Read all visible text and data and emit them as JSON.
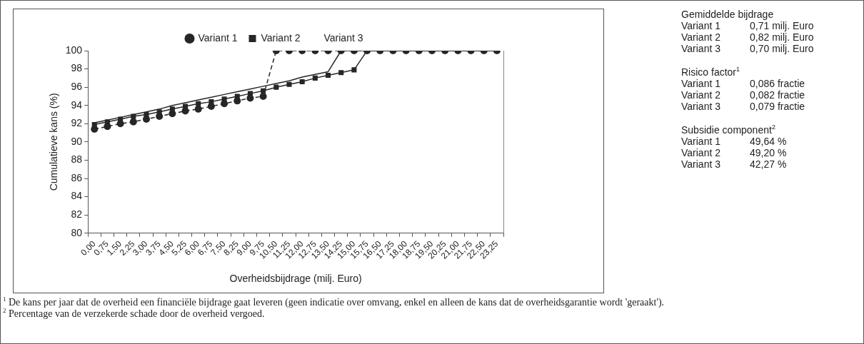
{
  "chart_data": {
    "type": "line",
    "xlabel": "Overheidsbijdrage (milj. Euro)",
    "ylabel": "Cumulatieve kans (%)",
    "categories": [
      "0,00",
      "0,75",
      "1,50",
      "2,25",
      "3,00",
      "3,75",
      "4,50",
      "5,25",
      "6,00",
      "6,75",
      "7,50",
      "8,25",
      "9,00",
      "9,75",
      "10,50",
      "11,25",
      "12,00",
      "12,75",
      "13,50",
      "14,25",
      "15,00",
      "15,75",
      "16,50",
      "17,25",
      "18,00",
      "18,75",
      "19,50",
      "20,25",
      "21,00",
      "21,75",
      "22,50",
      "23,25"
    ],
    "series": [
      {
        "name": "Variant 1",
        "color": "#262626",
        "marker": "circle",
        "line_style": "dashed",
        "values": [
          91.4,
          91.7,
          92.0,
          92.2,
          92.5,
          92.8,
          93.1,
          93.4,
          93.6,
          93.9,
          94.2,
          94.5,
          94.8,
          95.0,
          100,
          100,
          100,
          100,
          100,
          100,
          100,
          100,
          100,
          100,
          100,
          100,
          100,
          100,
          100,
          100,
          100,
          100
        ]
      },
      {
        "name": "Variant 2",
        "color": "#262626",
        "marker": "square",
        "line_style": "solid",
        "values": [
          91.9,
          92.2,
          92.5,
          92.8,
          93.0,
          93.3,
          93.6,
          93.9,
          94.2,
          94.4,
          94.7,
          95.0,
          95.3,
          95.6,
          96.0,
          96.3,
          96.6,
          97.0,
          97.3,
          97.6,
          97.9,
          100,
          100,
          100,
          100,
          100,
          100,
          100,
          100,
          100,
          100,
          100
        ]
      },
      {
        "name": "Variant 3",
        "color": "#262626",
        "marker": "none",
        "line_style": "solid",
        "values": [
          92.1,
          92.4,
          92.7,
          93.0,
          93.3,
          93.6,
          94.0,
          94.3,
          94.6,
          94.9,
          95.2,
          95.5,
          95.8,
          96.1,
          96.4,
          96.7,
          97.1,
          97.4,
          97.7,
          100,
          100,
          100,
          100,
          100,
          100,
          100,
          100,
          100,
          100,
          100,
          100,
          100
        ]
      }
    ],
    "ylim": [
      80,
      100
    ],
    "yticks": [
      80,
      82,
      84,
      86,
      88,
      90,
      92,
      94,
      96,
      98,
      100
    ],
    "grid": false,
    "legend": "top",
    "annotations": [
      "Gemiddelde bijdrage",
      "Variant 1",
      "0,71 milj. Euro",
      "Variant 2",
      "0,82 milj. Euro",
      "Variant 3",
      "0,70 milj. Euro",
      "Risico factor$^{1}$",
      "Variant 1",
      "0,086 fractie",
      "Variant 2",
      "0,082 fractie",
      "Variant 3",
      "0,079 fractie",
      "Subsidie component$^{2}$",
      "Variant 1",
      "49,64 %",
      "Variant 2",
      "49,20 %",
      "Variant 3",
      "42,27 %",
      "$^{1}$ De kans per jaar dat de overheid een financiële bijdrage gaat leveren (geen indicatie over omvang, enkel en alleen de kans dat de overheidsgarantie wordt 'geraakt').",
      "$^{2}$ Percentage van de verzekerde schade door de overheid vergoed."
    ]
  }
}
